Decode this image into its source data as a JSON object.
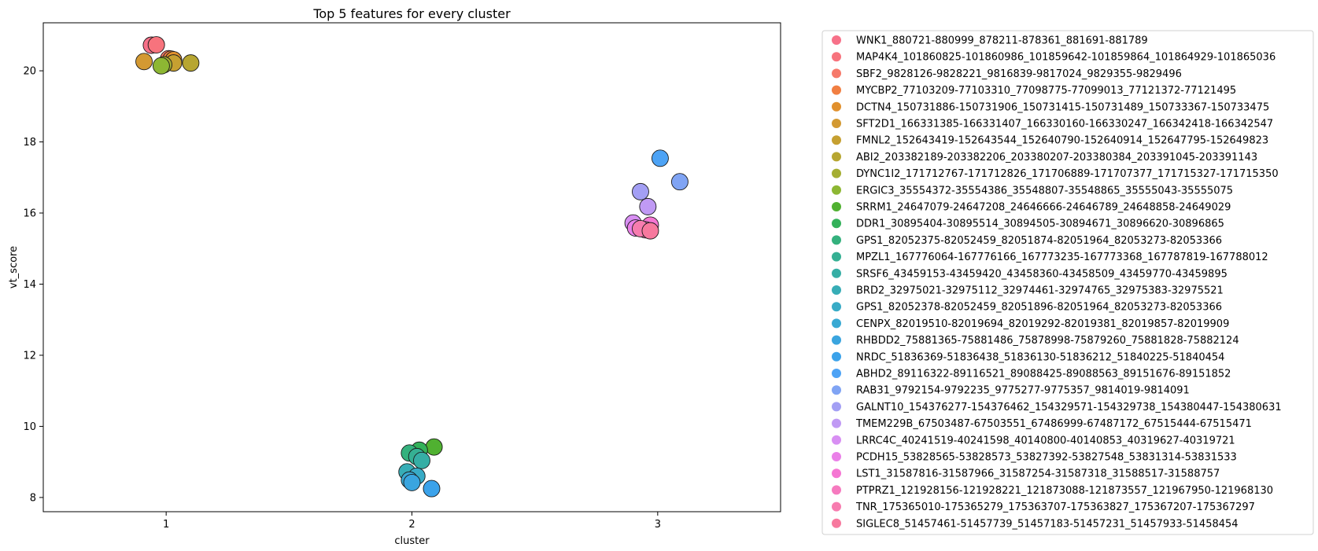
{
  "chart_data": {
    "type": "scatter",
    "title": "Top 5 features for every cluster",
    "xlabel": "cluster",
    "ylabel": "vt_score",
    "x_ticks": [
      1,
      2,
      3
    ],
    "y_ticks": [
      8,
      10,
      12,
      14,
      16,
      18,
      20
    ],
    "xlim": [
      0.5,
      3.5
    ],
    "ylim": [
      7.6,
      21.35
    ],
    "legend_position": "outside-right",
    "series": [
      {
        "name": "WNK1_880721-880999_878211-878361_881691-881789",
        "color": "#f77189",
        "points": [
          {
            "x": 0.94,
            "y": 20.72
          }
        ]
      },
      {
        "name": "MAP4K4_101860825-101860986_101859642-101859864_101864929-101865036",
        "color": "#f7737d",
        "points": [
          {
            "x": 0.96,
            "y": 20.73
          }
        ]
      },
      {
        "name": "SBF2_9828126-9828221_9816839-9817024_9829355-9829496",
        "color": "#f6796a",
        "points": [
          {
            "x": 1.01,
            "y": 20.34
          }
        ]
      },
      {
        "name": "MYCBP2_77103209-77103310_77098775-77099013_77121372-77121495",
        "color": "#f17f42",
        "points": [
          {
            "x": 1.02,
            "y": 20.33
          }
        ]
      },
      {
        "name": "DCTN4_150731886-150731906_150731415-150731489_150733367-150733475",
        "color": "#e1902d",
        "points": [
          {
            "x": 1.03,
            "y": 20.31
          }
        ]
      },
      {
        "name": "SFT2D1_166331385-166331407_166330160-166330247_166342418-166342547",
        "color": "#d39932",
        "points": [
          {
            "x": 0.91,
            "y": 20.26
          }
        ]
      },
      {
        "name": "FMNL2_152643419-152643544_152640790-152640914_152647795-152649823",
        "color": "#c6a031",
        "points": [
          {
            "x": 1.03,
            "y": 20.22
          }
        ]
      },
      {
        "name": "ABI2_203382189-203382206_203380207-203380384_203391045-203391143",
        "color": "#b7a631",
        "points": [
          {
            "x": 1.1,
            "y": 20.22
          }
        ]
      },
      {
        "name": "DYNC1I2_171712767-171712826_171706889-171707377_171715327-171715350",
        "color": "#a5ae32",
        "points": [
          {
            "x": 0.99,
            "y": 20.17
          }
        ]
      },
      {
        "name": "ERGIC3_35554372-35554386_35548807-35548865_35555043-35555075",
        "color": "#8db733",
        "points": [
          {
            "x": 0.98,
            "y": 20.14
          }
        ]
      },
      {
        "name": "SRRM1_24647079-24647208_24646666-24646789_24648858-24649029",
        "color": "#50b131",
        "points": [
          {
            "x": 2.09,
            "y": 9.42
          }
        ]
      },
      {
        "name": "DDR1_30895404-30895514_30894505-30894671_30896620-30896865",
        "color": "#33b15a",
        "points": [
          {
            "x": 2.03,
            "y": 9.33
          }
        ]
      },
      {
        "name": "GPS1_82052375-82052459_82051874-82051964_82053273-82053366",
        "color": "#34b17d",
        "points": [
          {
            "x": 1.99,
            "y": 9.25
          }
        ]
      },
      {
        "name": "MPZL1_167776064-167776166_167773235-167773368_167787819-167788012",
        "color": "#35b093",
        "points": [
          {
            "x": 2.02,
            "y": 9.15
          }
        ]
      },
      {
        "name": "SRSF6_43459153-43459420_43458360-43458509_43459770-43459895",
        "color": "#36aea5",
        "points": [
          {
            "x": 2.04,
            "y": 9.04
          }
        ]
      },
      {
        "name": "BRD2_32975021-32975112_32974461-32974765_32975383-32975521",
        "color": "#37adb6",
        "points": [
          {
            "x": 1.98,
            "y": 8.72
          }
        ]
      },
      {
        "name": "GPS1_82052378-82052459_82051896-82051964_82053273-82053366",
        "color": "#38abc6",
        "points": [
          {
            "x": 2.02,
            "y": 8.6
          }
        ]
      },
      {
        "name": "CENPX_82019510-82019694_82019292-82019381_82019857-82019909",
        "color": "#39a9d3",
        "points": [
          {
            "x": 1.99,
            "y": 8.49
          }
        ]
      },
      {
        "name": "RHBDD2_75881365-75881486_75878998-75879260_75881828-75882124",
        "color": "#3aa5df",
        "points": [
          {
            "x": 2.0,
            "y": 8.42
          }
        ]
      },
      {
        "name": "NRDC_51836369-51836438_51836130-51836212_51840225-51840454",
        "color": "#3ba2ea",
        "points": [
          {
            "x": 2.08,
            "y": 8.25
          }
        ]
      },
      {
        "name": "ABHD2_89116322-89116521_89088425-89088563_89151676-89151852",
        "color": "#4da3f5",
        "points": [
          {
            "x": 3.01,
            "y": 17.54
          }
        ]
      },
      {
        "name": "RAB31_9792154-9792235_9775277-9775357_9814019-9814091",
        "color": "#80a4f4",
        "points": [
          {
            "x": 3.09,
            "y": 16.88
          }
        ]
      },
      {
        "name": "GALNT10_154376277-154376462_154329571-154329738_154380447-154380631",
        "color": "#a39ff4",
        "points": [
          {
            "x": 2.93,
            "y": 16.6
          }
        ]
      },
      {
        "name": "TMEM229B_67503487-67503551_67486999-67487172_67515444-67515471",
        "color": "#c09af4",
        "points": [
          {
            "x": 2.96,
            "y": 16.18
          }
        ]
      },
      {
        "name": "LRRC4C_40241519-40241598_40140800-40140853_40319627-40319721",
        "color": "#d88ff3",
        "points": [
          {
            "x": 2.9,
            "y": 15.72
          }
        ]
      },
      {
        "name": "PCDH15_53828565-53828573_53827392-53827548_53831314-53831533",
        "color": "#ea80e8",
        "points": [
          {
            "x": 2.91,
            "y": 15.58
          }
        ]
      },
      {
        "name": "LST1_31587816-31587966_31587254-31587318_31588517-31588757",
        "color": "#f576d3",
        "points": [
          {
            "x": 2.97,
            "y": 15.66
          }
        ]
      },
      {
        "name": "PTPRZ1_121928156-121928221_121873088-121873557_121967950-121968130",
        "color": "#f67abf",
        "points": [
          {
            "x": 2.95,
            "y": 15.53
          }
        ]
      },
      {
        "name": "TNR_175365010-175365279_175363707-175363827_175367207-175367297",
        "color": "#f77caf",
        "points": [
          {
            "x": 2.93,
            "y": 15.56
          }
        ]
      },
      {
        "name": "SIGLEC8_51457461-51457739_51457183-51457231_51457933-51458454",
        "color": "#f7799e",
        "points": [
          {
            "x": 2.97,
            "y": 15.5
          }
        ]
      }
    ]
  }
}
